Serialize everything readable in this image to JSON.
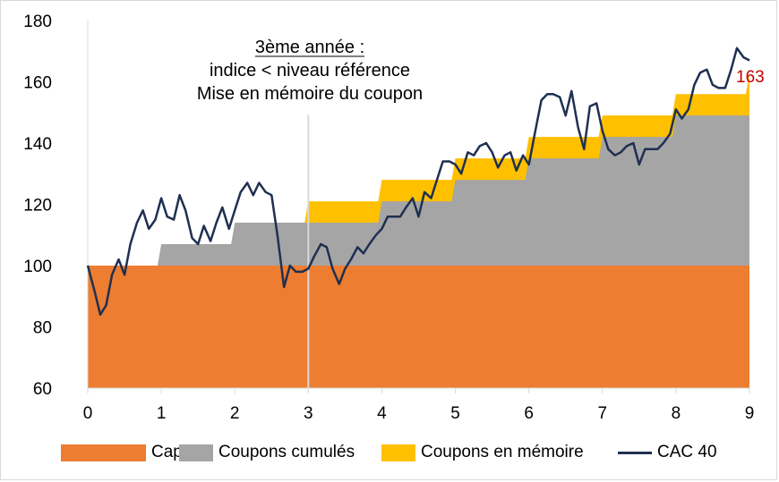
{
  "colors": {
    "capital": "#ed7d31",
    "coupons_cumules": "#a5a5a5",
    "coupons_memoire": "#ffc000",
    "cac40": "#1f3050",
    "marker_line": "#d9d9d9",
    "last_label": "#c00000"
  },
  "annotation": {
    "line1": "3ème année :",
    "line2": "indice < niveau référence",
    "line3": "Mise en mémoire du coupon"
  },
  "chart_data": {
    "type": "area",
    "xlim": [
      0,
      9
    ],
    "ylim": [
      60,
      180
    ],
    "x_ticks": [
      "0",
      "1",
      "2",
      "3",
      "4",
      "5",
      "6",
      "7",
      "8",
      "9"
    ],
    "y_ticks": [
      "60",
      "80",
      "100",
      "120",
      "140",
      "160",
      "180"
    ],
    "marker_x": 3,
    "last_value_label": "163",
    "legend": [
      "Capital",
      "Coupons cumulés",
      "Coupons en mémoire",
      "CAC 40"
    ],
    "series": [
      {
        "name": "Capital",
        "kind": "area",
        "x": [
          0,
          9
        ],
        "y": [
          100,
          100
        ]
      },
      {
        "name": "Coupons cumulés",
        "kind": "step-area",
        "x": [
          0,
          0.95,
          1.0,
          1.95,
          2.0,
          2.95,
          3.0,
          3.95,
          4.0,
          4.95,
          5.0,
          5.95,
          6.0,
          6.95,
          7.0,
          7.95,
          8.0,
          9.0
        ],
        "y": [
          100,
          100,
          107,
          107,
          114,
          114,
          114,
          114,
          121,
          121,
          128,
          128,
          135,
          135,
          142,
          142,
          149,
          149
        ]
      },
      {
        "name": "Coupons en mémoire",
        "kind": "step-area",
        "x": [
          2.95,
          3.0,
          3.95,
          4.0,
          4.95,
          5.0,
          5.95,
          6.0,
          6.95,
          7.0,
          7.95,
          8.0,
          8.95,
          9.0
        ],
        "y": [
          114,
          121,
          121,
          128,
          128,
          135,
          135,
          142,
          142,
          149,
          149,
          156,
          156,
          163
        ]
      },
      {
        "name": "CAC 40",
        "kind": "line",
        "x": [
          0.0,
          0.1,
          0.17,
          0.25,
          0.33,
          0.42,
          0.5,
          0.58,
          0.67,
          0.75,
          0.83,
          0.92,
          1.0,
          1.08,
          1.17,
          1.25,
          1.33,
          1.42,
          1.5,
          1.58,
          1.67,
          1.75,
          1.83,
          1.92,
          2.0,
          2.08,
          2.17,
          2.25,
          2.33,
          2.42,
          2.5,
          2.58,
          2.67,
          2.75,
          2.83,
          2.92,
          3.0,
          3.08,
          3.17,
          3.25,
          3.33,
          3.42,
          3.5,
          3.58,
          3.67,
          3.75,
          3.83,
          3.92,
          4.0,
          4.08,
          4.17,
          4.25,
          4.33,
          4.42,
          4.5,
          4.58,
          4.67,
          4.75,
          4.83,
          4.92,
          5.0,
          5.08,
          5.17,
          5.25,
          5.33,
          5.42,
          5.5,
          5.58,
          5.67,
          5.75,
          5.83,
          5.92,
          6.0,
          6.08,
          6.17,
          6.25,
          6.33,
          6.42,
          6.5,
          6.58,
          6.67,
          6.75,
          6.83,
          6.92,
          7.0,
          7.08,
          7.17,
          7.25,
          7.33,
          7.42,
          7.5,
          7.58,
          7.67,
          7.75,
          7.83,
          7.92,
          8.0,
          8.08,
          8.17,
          8.25,
          8.33,
          8.42,
          8.5,
          8.58,
          8.67,
          8.75,
          8.83,
          8.92,
          9.0
        ],
        "y": [
          100,
          91,
          84,
          87,
          97,
          102,
          97,
          107,
          114,
          118,
          112,
          115,
          122,
          116,
          115,
          123,
          118,
          109,
          107,
          113,
          108,
          114,
          119,
          112,
          118,
          124,
          127,
          123,
          127,
          124,
          123,
          110,
          93,
          100,
          98,
          98,
          99,
          103,
          107,
          106,
          99,
          94,
          99,
          102,
          106,
          104,
          107,
          110,
          112,
          116,
          116,
          116,
          119,
          122,
          116,
          124,
          122,
          128,
          134,
          134,
          133,
          130,
          137,
          136,
          139,
          140,
          137,
          132,
          136,
          137,
          131,
          136,
          133,
          143,
          154,
          156,
          156,
          155,
          149,
          157,
          145,
          138,
          152,
          153,
          144,
          138,
          136,
          137,
          139,
          140,
          133,
          138,
          138,
          138,
          140,
          143,
          151,
          148,
          151,
          159,
          163,
          164,
          159,
          158,
          158,
          164,
          171,
          168,
          167
        ]
      }
    ]
  }
}
